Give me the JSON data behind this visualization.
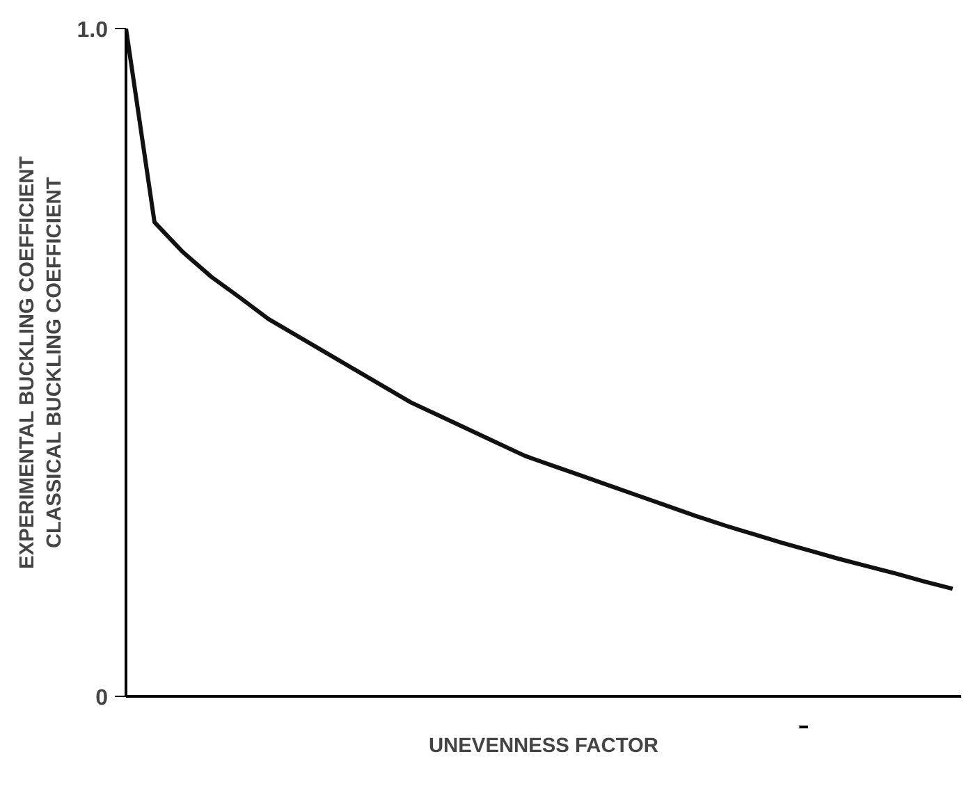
{
  "chart_data": {
    "type": "line",
    "xlabel": "UNEVENNESS FACTOR",
    "ylabel": "EXPERIMENTAL BUCKLING COEFFICIENT\nCLASSICAL BUCKLING COEFFICIENT",
    "categories": [
      null,
      null,
      null,
      null,
      null,
      null,
      null,
      null,
      null,
      null,
      null,
      null,
      null,
      null,
      null,
      null,
      null,
      null,
      null,
      null,
      null,
      null,
      null,
      null,
      null,
      null,
      null,
      null,
      null,
      null
    ],
    "series": [
      {
        "color": "#111111",
        "values": [
          1.0,
          0.71,
          0.665,
          0.628,
          0.597,
          0.565,
          0.54,
          0.515,
          0.49,
          0.465,
          0.44,
          0.42,
          0.4,
          0.38,
          0.36,
          0.345,
          0.33,
          0.315,
          0.3,
          0.285,
          0.27,
          0.256,
          0.243,
          0.23,
          0.218,
          0.206,
          0.195,
          0.184,
          0.172,
          0.161
        ]
      }
    ],
    "ylim": [
      0,
      1
    ],
    "yticks": [
      0,
      {
        "value": 1,
        "label": "1.0"
      }
    ],
    "tick_labels": "y",
    "marker": "none",
    "line_style": "solid"
  }
}
